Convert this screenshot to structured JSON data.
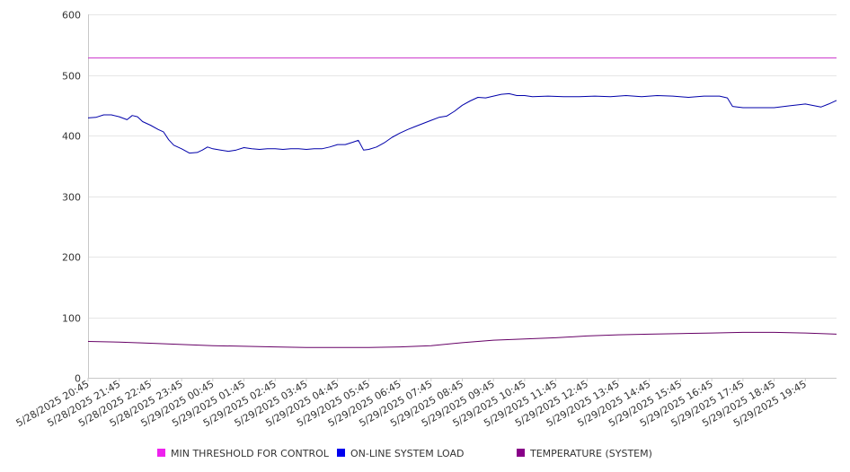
{
  "chart_data": {
    "type": "line",
    "title": "",
    "xlabel": "",
    "ylabel": "",
    "ylim": [
      0,
      600
    ],
    "yticks": [
      0,
      100,
      200,
      300,
      400,
      500,
      600
    ],
    "grid": true,
    "legend_position": "bottom",
    "x_tick_labels": [
      "5/28/2025 20:45",
      "5/28/2025 21:45",
      "5/28/2025 22:45",
      "5/28/2025 23:45",
      "5/29/2025 00:45",
      "5/29/2025 01:45",
      "5/29/2025 02:45",
      "5/29/2025 03:45",
      "5/29/2025 04:45",
      "5/29/2025 05:45",
      "5/29/2025 06:45",
      "5/29/2025 07:45",
      "5/29/2025 08:45",
      "5/29/2025 09:45",
      "5/29/2025 10:45",
      "5/29/2025 11:45",
      "5/29/2025 12:45",
      "5/29/2025 13:45",
      "5/29/2025 14:45",
      "5/29/2025 15:45",
      "5/29/2025 16:45",
      "5/29/2025 17:45",
      "5/29/2025 18:45",
      "5/29/2025 19:45"
    ],
    "x_range": [
      "5/28/2025 20:45",
      "5/29/2025 20:45"
    ],
    "series": [
      {
        "name": "MIN THRESHOLD FOR CONTROL",
        "color": "#cc33cc",
        "legend_color": "#ee22ee",
        "points": [
          [
            "5/28/2025 20:45",
            528
          ],
          [
            "5/29/2025 20:45",
            528
          ]
        ]
      },
      {
        "name": "ON-LINE SYSTEM LOAD",
        "color": "#0000aa",
        "legend_color": "#0000ee",
        "points": [
          [
            "5/28/2025 20:45",
            429
          ],
          [
            "5/28/2025 21:00",
            430
          ],
          [
            "5/28/2025 21:15",
            434
          ],
          [
            "5/28/2025 21:30",
            434
          ],
          [
            "5/28/2025 21:45",
            431
          ],
          [
            "5/28/2025 22:00",
            426
          ],
          [
            "5/28/2025 22:10",
            433
          ],
          [
            "5/28/2025 22:20",
            431
          ],
          [
            "5/28/2025 22:30",
            423
          ],
          [
            "5/28/2025 22:45",
            417
          ],
          [
            "5/28/2025 23:00",
            410
          ],
          [
            "5/28/2025 23:10",
            406
          ],
          [
            "5/28/2025 23:20",
            393
          ],
          [
            "5/28/2025 23:30",
            384
          ],
          [
            "5/28/2025 23:45",
            378
          ],
          [
            "5/29/2025 00:00",
            371
          ],
          [
            "5/29/2025 00:15",
            372
          ],
          [
            "5/29/2025 00:25",
            376
          ],
          [
            "5/29/2025 00:35",
            381
          ],
          [
            "5/29/2025 00:45",
            378
          ],
          [
            "5/29/2025 01:00",
            376
          ],
          [
            "5/29/2025 01:15",
            374
          ],
          [
            "5/29/2025 01:30",
            376
          ],
          [
            "5/29/2025 01:45",
            380
          ],
          [
            "5/29/2025 02:00",
            378
          ],
          [
            "5/29/2025 02:15",
            377
          ],
          [
            "5/29/2025 02:30",
            378
          ],
          [
            "5/29/2025 02:45",
            378
          ],
          [
            "5/29/2025 03:00",
            377
          ],
          [
            "5/29/2025 03:15",
            378
          ],
          [
            "5/29/2025 03:30",
            378
          ],
          [
            "5/29/2025 03:45",
            377
          ],
          [
            "5/29/2025 04:00",
            378
          ],
          [
            "5/29/2025 04:15",
            378
          ],
          [
            "5/29/2025 04:30",
            381
          ],
          [
            "5/29/2025 04:45",
            385
          ],
          [
            "5/29/2025 05:00",
            385
          ],
          [
            "5/29/2025 05:15",
            389
          ],
          [
            "5/29/2025 05:25",
            392
          ],
          [
            "5/29/2025 05:35",
            376
          ],
          [
            "5/29/2025 05:45",
            377
          ],
          [
            "5/29/2025 06:00",
            381
          ],
          [
            "5/29/2025 06:15",
            388
          ],
          [
            "5/29/2025 06:30",
            397
          ],
          [
            "5/29/2025 06:45",
            404
          ],
          [
            "5/29/2025 07:00",
            410
          ],
          [
            "5/29/2025 07:15",
            415
          ],
          [
            "5/29/2025 07:30",
            420
          ],
          [
            "5/29/2025 07:45",
            425
          ],
          [
            "5/29/2025 08:00",
            430
          ],
          [
            "5/29/2025 08:15",
            432
          ],
          [
            "5/29/2025 08:30",
            440
          ],
          [
            "5/29/2025 08:45",
            450
          ],
          [
            "5/29/2025 09:00",
            457
          ],
          [
            "5/29/2025 09:15",
            463
          ],
          [
            "5/29/2025 09:30",
            462
          ],
          [
            "5/29/2025 09:45",
            465
          ],
          [
            "5/29/2025 10:00",
            468
          ],
          [
            "5/29/2025 10:15",
            469
          ],
          [
            "5/29/2025 10:30",
            466
          ],
          [
            "5/29/2025 10:45",
            466
          ],
          [
            "5/29/2025 11:00",
            464
          ],
          [
            "5/29/2025 11:30",
            465
          ],
          [
            "5/29/2025 12:00",
            464
          ],
          [
            "5/29/2025 12:30",
            464
          ],
          [
            "5/29/2025 13:00",
            465
          ],
          [
            "5/29/2025 13:30",
            464
          ],
          [
            "5/29/2025 14:00",
            466
          ],
          [
            "5/29/2025 14:30",
            464
          ],
          [
            "5/29/2025 15:00",
            466
          ],
          [
            "5/29/2025 15:30",
            465
          ],
          [
            "5/29/2025 16:00",
            463
          ],
          [
            "5/29/2025 16:30",
            465
          ],
          [
            "5/29/2025 17:00",
            465
          ],
          [
            "5/29/2025 17:15",
            462
          ],
          [
            "5/29/2025 17:25",
            448
          ],
          [
            "5/29/2025 17:45",
            446
          ],
          [
            "5/29/2025 18:15",
            446
          ],
          [
            "5/29/2025 18:45",
            446
          ],
          [
            "5/29/2025 19:15",
            449
          ],
          [
            "5/29/2025 19:45",
            452
          ],
          [
            "5/29/2025 20:15",
            447
          ],
          [
            "5/29/2025 20:30",
            452
          ],
          [
            "5/29/2025 20:45",
            458
          ]
        ]
      },
      {
        "name": "TEMPERATURE (SYSTEM)",
        "color": "#660066",
        "legend_color": "#880088",
        "points": [
          [
            "5/28/2025 20:45",
            60
          ],
          [
            "5/28/2025 21:45",
            59
          ],
          [
            "5/28/2025 22:45",
            57
          ],
          [
            "5/28/2025 23:45",
            55
          ],
          [
            "5/29/2025 00:45",
            53
          ],
          [
            "5/29/2025 01:45",
            52
          ],
          [
            "5/29/2025 02:45",
            51
          ],
          [
            "5/29/2025 03:45",
            50
          ],
          [
            "5/29/2025 04:45",
            50
          ],
          [
            "5/29/2025 05:45",
            50
          ],
          [
            "5/29/2025 06:45",
            51
          ],
          [
            "5/29/2025 07:45",
            53
          ],
          [
            "5/29/2025 08:45",
            58
          ],
          [
            "5/29/2025 09:45",
            62
          ],
          [
            "5/29/2025 10:45",
            64
          ],
          [
            "5/29/2025 11:45",
            66
          ],
          [
            "5/29/2025 12:45",
            69
          ],
          [
            "5/29/2025 13:45",
            71
          ],
          [
            "5/29/2025 14:45",
            72
          ],
          [
            "5/29/2025 15:45",
            73
          ],
          [
            "5/29/2025 16:45",
            74
          ],
          [
            "5/29/2025 17:45",
            75
          ],
          [
            "5/29/2025 18:45",
            75
          ],
          [
            "5/29/2025 19:45",
            74
          ],
          [
            "5/29/2025 20:45",
            72
          ]
        ]
      }
    ]
  }
}
